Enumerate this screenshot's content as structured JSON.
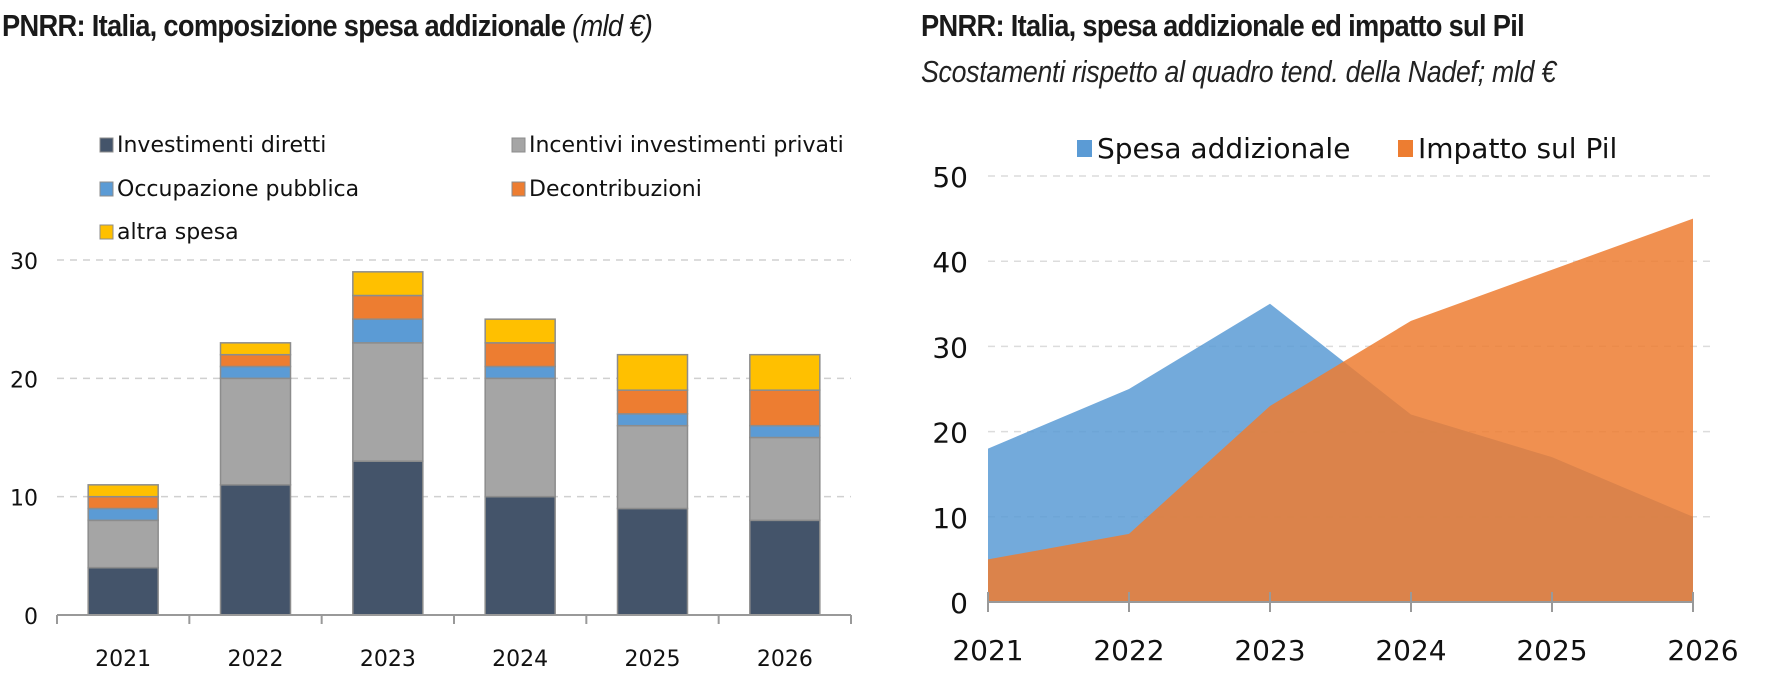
{
  "left_chart": {
    "title": "PNRR: Italia, composizione spesa addizionale",
    "title_unit": "(mld €)"
  },
  "right_chart": {
    "title": "PNRR: Italia, spesa addizionale ed impatto sul Pil",
    "subtitle": "Scostamenti rispetto al quadro tend. della Nadef; mld €"
  },
  "chart_data": [
    {
      "type": "bar",
      "stacked": true,
      "title": "PNRR: Italia, composizione spesa addizionale (mld €)",
      "xlabel": "",
      "ylabel": "",
      "categories": [
        "2021",
        "2022",
        "2023",
        "2024",
        "2025",
        "2026"
      ],
      "series": [
        {
          "name": "Investimenti diretti",
          "color": "#44546a",
          "values": [
            4,
            11,
            13,
            10,
            9,
            8
          ]
        },
        {
          "name": "Incentivi investimenti privati",
          "color": "#a5a5a5",
          "values": [
            4,
            9,
            10,
            10,
            7,
            7
          ]
        },
        {
          "name": "Occupazione pubblica",
          "color": "#5b9bd5",
          "values": [
            1,
            1,
            2,
            1,
            1,
            1
          ]
        },
        {
          "name": "Decontribuzioni",
          "color": "#ed7d31",
          "values": [
            1,
            1,
            2,
            2,
            2,
            3
          ]
        },
        {
          "name": "altra spesa",
          "color": "#ffc000",
          "values": [
            1,
            1,
            2,
            2,
            3,
            3
          ]
        }
      ],
      "ylim": [
        0,
        30
      ],
      "yticks": [
        "0",
        "10",
        "20",
        "30"
      ],
      "grid": true,
      "legend": "top"
    },
    {
      "type": "area",
      "title": "PNRR: Italia, spesa addizionale ed impatto sul Pil",
      "subtitle": "Scostamenti rispetto al quadro tend. della Nadef; mld €",
      "xlabel": "",
      "ylabel": "",
      "x": [
        "2021",
        "2022",
        "2023",
        "2024",
        "2025",
        "2026"
      ],
      "series": [
        {
          "name": "Spesa addizionale",
          "color": "#5b9bd5",
          "values": [
            18,
            25,
            35,
            22,
            17,
            10
          ]
        },
        {
          "name": "Impatto sul Pil",
          "color": "#ed7d31",
          "values": [
            5,
            8,
            23,
            33,
            39,
            45
          ]
        }
      ],
      "ylim": [
        0,
        50
      ],
      "yticks": [
        "0",
        "10",
        "20",
        "30",
        "40",
        "50"
      ],
      "grid": true,
      "legend": "top"
    }
  ]
}
